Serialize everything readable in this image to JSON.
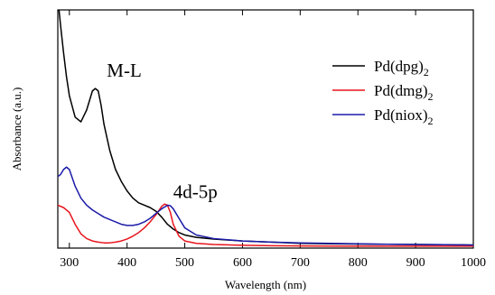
{
  "chart_data": {
    "type": "line",
    "xlabel": "Wavelength (nm)",
    "ylabel": "Absorbance (a.u.)",
    "xlim": [
      280,
      1000
    ],
    "xticks": [
      "300",
      "400",
      "500",
      "600",
      "700",
      "800",
      "900",
      "1000"
    ],
    "y_tick_labels_shown": false,
    "ylim": [
      0,
      1
    ],
    "legend_position": "top-right",
    "annotations": [
      {
        "text": "M-L",
        "x": 365,
        "y": 0.72
      },
      {
        "text": "4d-5p",
        "x": 480,
        "y": 0.21
      }
    ],
    "series": [
      {
        "name": "Pd(dpg)2",
        "legend_main": "Pd(dpg)",
        "legend_sub": "2",
        "color": "#000000",
        "x": [
          280,
          285,
          290,
          295,
          300,
          310,
          320,
          330,
          340,
          345,
          350,
          355,
          360,
          370,
          380,
          390,
          400,
          410,
          420,
          430,
          440,
          450,
          460,
          470,
          480,
          490,
          500,
          520,
          550,
          600,
          650,
          700,
          750,
          800,
          850,
          900,
          950,
          1000
        ],
        "values": [
          1.05,
          0.93,
          0.82,
          0.72,
          0.64,
          0.55,
          0.53,
          0.58,
          0.66,
          0.67,
          0.66,
          0.6,
          0.52,
          0.41,
          0.33,
          0.28,
          0.24,
          0.21,
          0.19,
          0.18,
          0.17,
          0.155,
          0.13,
          0.1,
          0.08,
          0.065,
          0.055,
          0.045,
          0.038,
          0.03,
          0.025,
          0.02,
          0.018,
          0.017,
          0.016,
          0.015,
          0.014,
          0.013
        ]
      },
      {
        "name": "Pd(dmg)2",
        "legend_main": "Pd(dmg)",
        "legend_sub": "2",
        "color": "#e8141c",
        "x": [
          280,
          290,
          300,
          310,
          320,
          330,
          340,
          350,
          360,
          370,
          380,
          390,
          400,
          410,
          420,
          430,
          440,
          450,
          460,
          465,
          470,
          475,
          480,
          490,
          500,
          520,
          550,
          600,
          650,
          700,
          800,
          900,
          1000
        ],
        "values": [
          0.18,
          0.17,
          0.15,
          0.1,
          0.06,
          0.04,
          0.03,
          0.025,
          0.022,
          0.022,
          0.025,
          0.03,
          0.038,
          0.05,
          0.065,
          0.085,
          0.11,
          0.14,
          0.175,
          0.185,
          0.18,
          0.15,
          0.1,
          0.05,
          0.03,
          0.02,
          0.015,
          0.012,
          0.01,
          0.009,
          0.008,
          0.008,
          0.008
        ]
      },
      {
        "name": "Pd(niox)2",
        "legend_main": "Pd(niox)",
        "legend_sub": "2",
        "color": "#1b1ba8",
        "x": [
          280,
          285,
          290,
          295,
          300,
          310,
          320,
          330,
          340,
          350,
          360,
          370,
          380,
          390,
          400,
          410,
          420,
          430,
          440,
          450,
          460,
          470,
          475,
          480,
          490,
          500,
          520,
          550,
          600,
          650,
          700,
          750,
          800,
          850,
          900,
          950,
          1000
        ],
        "values": [
          0.3,
          0.31,
          0.33,
          0.34,
          0.33,
          0.26,
          0.21,
          0.18,
          0.16,
          0.145,
          0.13,
          0.12,
          0.11,
          0.1,
          0.095,
          0.095,
          0.1,
          0.11,
          0.125,
          0.145,
          0.165,
          0.18,
          0.178,
          0.165,
          0.125,
          0.085,
          0.055,
          0.04,
          0.03,
          0.025,
          0.022,
          0.02,
          0.018,
          0.016,
          0.015,
          0.014,
          0.013
        ]
      }
    ]
  }
}
